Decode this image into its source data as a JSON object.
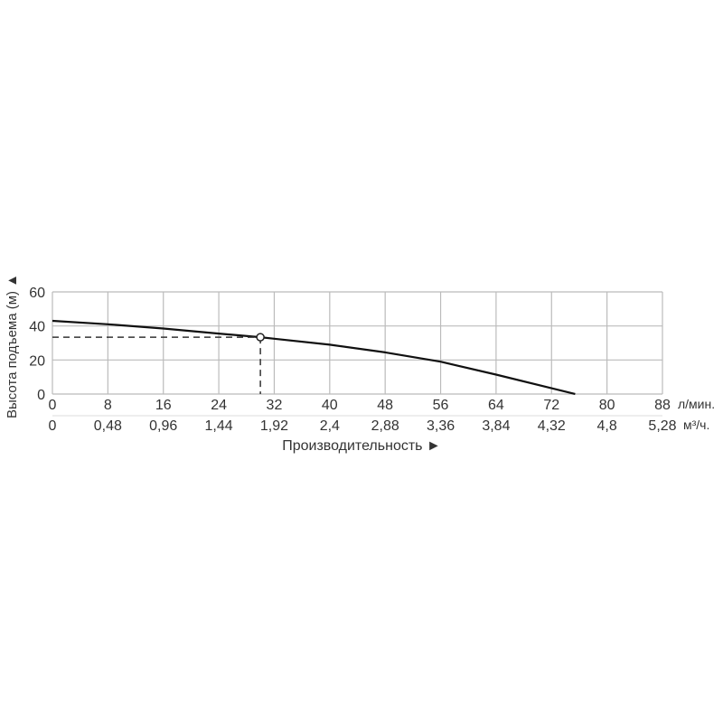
{
  "chart_data": {
    "type": "line",
    "title": "",
    "ylabel": "Высота подъема (м) ▲",
    "xlabel": "Производительность ►",
    "x_unit_primary": "л/мин.",
    "x_unit_secondary": "м³/ч.",
    "xlim": [
      0,
      88
    ],
    "ylim": [
      0,
      60
    ],
    "grid": true,
    "x_ticks": [
      0,
      8,
      16,
      24,
      32,
      40,
      48,
      56,
      64,
      72,
      80,
      88
    ],
    "x_tick_labels": [
      "0",
      "8",
      "16",
      "24",
      "32",
      "40",
      "48",
      "56",
      "64",
      "72",
      "80",
      "88"
    ],
    "x_secondary_tick_labels": [
      "0",
      "0,48",
      "0,96",
      "1,44",
      "1,92",
      "2,4",
      "2,88",
      "3,36",
      "3,84",
      "4,32",
      "4,8",
      "5,28"
    ],
    "y_ticks": [
      0,
      20,
      40,
      60
    ],
    "y_tick_labels": [
      "0",
      "20",
      "40",
      "60"
    ],
    "series": [
      {
        "x": [
          0,
          8,
          16,
          24,
          30,
          32,
          40,
          48,
          56,
          64,
          72,
          75.4
        ],
        "y": [
          43,
          41,
          38.5,
          35.5,
          33.4,
          32.5,
          29,
          24.5,
          19,
          11.4,
          3.4,
          0
        ]
      }
    ],
    "operating_point": {
      "x": 30,
      "y": 33.4
    },
    "colors": {
      "curve": "#111111",
      "grid": "#bbbbbb",
      "text": "#333333"
    }
  }
}
